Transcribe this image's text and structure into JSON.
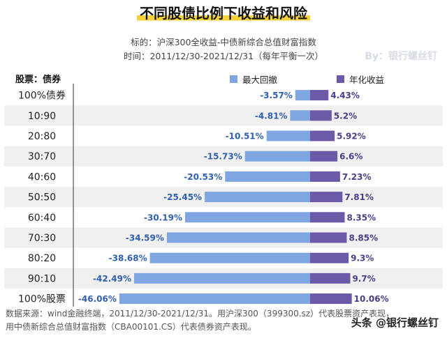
{
  "title": "不同股债比例下收益和风险",
  "subtitle_line1": "标的：沪深300全收益-中债新综合总值财富指数",
  "subtitle_line2": "时间：2011/12/30-2021/12/31（每年平衡一次）",
  "watermark": "By：银行螺丝钉",
  "category_header": "股票：债券",
  "footnote_line1": "数据来源：wind金融终端，2011/12/30-2021/12/31。用沪深300（399300.sz）代表股票资产表现，",
  "footnote_line2": "用中债新综合总值财富指数（CBA00101.CS）代表债券资产表现。",
  "brand": "头条 @银行螺丝钉",
  "colors": {
    "drawdown": "#7fa6e0",
    "return": "#6c5aa8",
    "drawdown_label": "#2f5fb0",
    "return_label": "#4a3d8a",
    "row_shade": "#f0f0f0"
  },
  "chart_data": {
    "type": "bar",
    "orientation": "horizontal-diverging",
    "categories": [
      "100%债券",
      "10:90",
      "20:80",
      "30:70",
      "40:60",
      "50:50",
      "60:40",
      "70:30",
      "80:20",
      "90:10",
      "100%股票"
    ],
    "series": [
      {
        "name": "最大回撤",
        "values": [
          -3.57,
          -4.81,
          -10.51,
          -15.73,
          -20.53,
          -25.45,
          -30.19,
          -34.59,
          -38.68,
          -42.49,
          -46.06
        ],
        "labels": [
          "-3.57%",
          "-4.81%",
          "-10.51%",
          "-15.73%",
          "-20.53%",
          "-25.45%",
          "-30.19%",
          "-34.59%",
          "-38.68%",
          "-42.49%",
          "-46.06%"
        ]
      },
      {
        "name": "年化收益",
        "values": [
          4.43,
          5.2,
          5.92,
          6.6,
          7.23,
          7.81,
          8.35,
          8.85,
          9.3,
          9.7,
          10.06
        ],
        "labels": [
          "4.43%",
          "5.2%",
          "5.92%",
          "6.6%",
          "7.23%",
          "7.81%",
          "8.35%",
          "8.85%",
          "9.3%",
          "9.7%",
          "10.06%"
        ]
      }
    ],
    "legend_position": "top"
  }
}
